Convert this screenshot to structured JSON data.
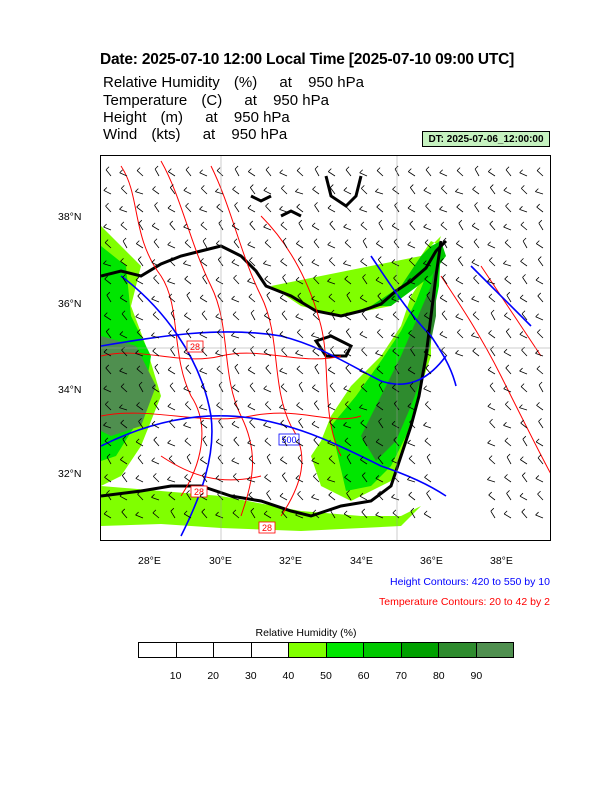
{
  "title": "Date: 2025-07-10  12:00 Local Time [2025-07-10  09:00 UTC]",
  "fields": [
    {
      "name": "Relative Humidity",
      "unit": "(%)",
      "at": "at",
      "level": "950 hPa"
    },
    {
      "name": "Temperature",
      "unit": "(C)",
      "at": "at",
      "level": "950 hPa"
    },
    {
      "name": "Height",
      "unit": "(m)",
      "at": "at",
      "level": "950 hPa"
    },
    {
      "name": "Wind",
      "unit": "(kts)",
      "at": "at",
      "level": "950 hPa"
    }
  ],
  "dt_badge": "DT: 2025-07-06_12:00:00",
  "map": {
    "lat_ticks": [
      "38°N",
      "36°N",
      "34°N",
      "32°N"
    ],
    "lon_ticks": [
      "28°E",
      "30°E",
      "32°E",
      "34°E",
      "36°E",
      "38°E"
    ],
    "height_contour_labels": [
      "500"
    ],
    "temperature_contour_labels": [
      "28",
      "28",
      "28"
    ],
    "colors": {
      "land_boundary": "#000000",
      "height_contours": "#0000ff",
      "temperature_contours": "#ff0000",
      "wind_barbs": "#000000"
    }
  },
  "notes": {
    "height": "Height Contours: 420 to 550 by 10",
    "temperature": "Temperature Contours: 20 to 42 by 2"
  },
  "colorbar": {
    "title": "Relative Humidity  (%)",
    "labels": [
      "10",
      "20",
      "30",
      "40",
      "50",
      "60",
      "70",
      "80",
      "90"
    ],
    "colors": [
      "#ffffff",
      "#ffffff",
      "#ffffff",
      "#ffffff",
      "#80ff00",
      "#00e600",
      "#00c800",
      "#00a000",
      "#2e8b2e",
      "#4f8f4f"
    ]
  }
}
